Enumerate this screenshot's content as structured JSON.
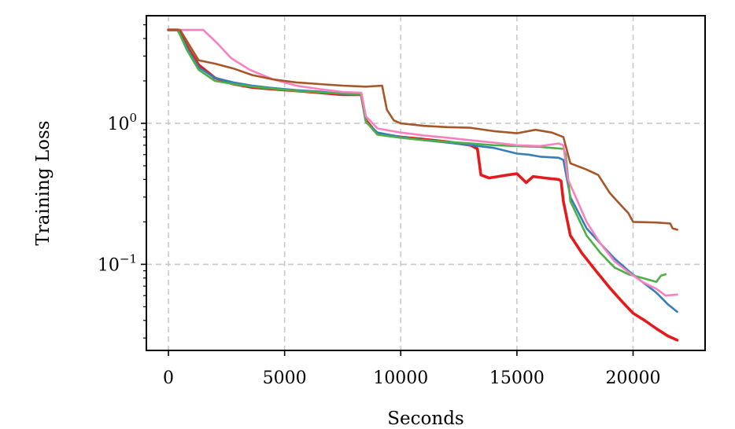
{
  "chart_data": {
    "type": "line",
    "xlabel": "Seconds",
    "ylabel": "Training Loss",
    "x_scale": "linear",
    "y_scale": "log",
    "xlim": [
      -950,
      23100
    ],
    "ylim": [
      0.0245,
      5.8
    ],
    "grid": true,
    "legend": "none",
    "x_ticks": [
      {
        "value": 0,
        "label": "0"
      },
      {
        "value": 5000,
        "label": "5000"
      },
      {
        "value": 10000,
        "label": "10000"
      },
      {
        "value": 15000,
        "label": "15000"
      },
      {
        "value": 20000,
        "label": "20000"
      }
    ],
    "y_ticks": [
      {
        "value": 1,
        "base": "10",
        "exp": "0"
      },
      {
        "value": 0.1,
        "base": "10",
        "exp": "−1"
      }
    ],
    "series": [
      {
        "color": "#e41a1c",
        "width": 3.6,
        "points": [
          [
            0,
            4.6
          ],
          [
            400,
            4.6
          ],
          [
            900,
            3.3
          ],
          [
            1300,
            2.6
          ],
          [
            2000,
            2.1
          ],
          [
            2800,
            1.9
          ],
          [
            3600,
            1.8
          ],
          [
            4500,
            1.75
          ],
          [
            5500,
            1.7
          ],
          [
            6500,
            1.65
          ],
          [
            7500,
            1.6
          ],
          [
            8300,
            1.6
          ],
          [
            8500,
            1.05
          ],
          [
            9000,
            0.84
          ],
          [
            10000,
            0.8
          ],
          [
            11000,
            0.77
          ],
          [
            12000,
            0.74
          ],
          [
            13000,
            0.7
          ],
          [
            13300,
            0.66
          ],
          [
            13450,
            0.43
          ],
          [
            13800,
            0.41
          ],
          [
            14200,
            0.42
          ],
          [
            14600,
            0.43
          ],
          [
            15000,
            0.44
          ],
          [
            15400,
            0.38
          ],
          [
            15700,
            0.42
          ],
          [
            16200,
            0.41
          ],
          [
            16800,
            0.4
          ],
          [
            16900,
            0.39
          ],
          [
            17000,
            0.28
          ],
          [
            17300,
            0.16
          ],
          [
            17800,
            0.12
          ],
          [
            18400,
            0.09
          ],
          [
            19000,
            0.068
          ],
          [
            19500,
            0.055
          ],
          [
            20000,
            0.045
          ],
          [
            20500,
            0.04
          ],
          [
            21000,
            0.035
          ],
          [
            21500,
            0.031
          ],
          [
            21900,
            0.029
          ]
        ]
      },
      {
        "color": "#377eb8",
        "width": 2.6,
        "points": [
          [
            0,
            4.6
          ],
          [
            400,
            4.6
          ],
          [
            900,
            3.2
          ],
          [
            1300,
            2.5
          ],
          [
            2000,
            2.1
          ],
          [
            2800,
            1.95
          ],
          [
            3600,
            1.85
          ],
          [
            4500,
            1.78
          ],
          [
            5500,
            1.72
          ],
          [
            6500,
            1.68
          ],
          [
            7500,
            1.62
          ],
          [
            8300,
            1.6
          ],
          [
            8500,
            1.02
          ],
          [
            9000,
            0.86
          ],
          [
            10000,
            0.8
          ],
          [
            11000,
            0.76
          ],
          [
            12000,
            0.73
          ],
          [
            13000,
            0.7
          ],
          [
            14000,
            0.67
          ],
          [
            15000,
            0.61
          ],
          [
            15500,
            0.6
          ],
          [
            16000,
            0.58
          ],
          [
            16800,
            0.57
          ],
          [
            17000,
            0.55
          ],
          [
            17300,
            0.3
          ],
          [
            18000,
            0.18
          ],
          [
            18600,
            0.14
          ],
          [
            19200,
            0.11
          ],
          [
            19800,
            0.09
          ],
          [
            20400,
            0.075
          ],
          [
            21000,
            0.063
          ],
          [
            21500,
            0.052
          ],
          [
            21900,
            0.046
          ]
        ]
      },
      {
        "color": "#4daf4a",
        "width": 2.6,
        "points": [
          [
            0,
            4.6
          ],
          [
            400,
            4.6
          ],
          [
            800,
            3.3
          ],
          [
            1300,
            2.4
          ],
          [
            2000,
            2.0
          ],
          [
            2800,
            1.9
          ],
          [
            3600,
            1.82
          ],
          [
            4500,
            1.76
          ],
          [
            5500,
            1.7
          ],
          [
            6500,
            1.66
          ],
          [
            7500,
            1.63
          ],
          [
            8300,
            1.6
          ],
          [
            8500,
            1.03
          ],
          [
            9000,
            0.83
          ],
          [
            10000,
            0.79
          ],
          [
            11000,
            0.76
          ],
          [
            12000,
            0.74
          ],
          [
            13000,
            0.72
          ],
          [
            14000,
            0.7
          ],
          [
            15000,
            0.69
          ],
          [
            16000,
            0.68
          ],
          [
            17000,
            0.66
          ],
          [
            17100,
            0.6
          ],
          [
            17300,
            0.28
          ],
          [
            18000,
            0.16
          ],
          [
            18600,
            0.12
          ],
          [
            19200,
            0.095
          ],
          [
            19800,
            0.085
          ],
          [
            20400,
            0.08
          ],
          [
            21000,
            0.075
          ],
          [
            21200,
            0.083
          ],
          [
            21400,
            0.085
          ]
        ]
      },
      {
        "color": "#f781bf",
        "width": 2.6,
        "points": [
          [
            0,
            4.6
          ],
          [
            1500,
            4.6
          ],
          [
            2100,
            3.7
          ],
          [
            2700,
            2.9
          ],
          [
            3500,
            2.4
          ],
          [
            4500,
            2.05
          ],
          [
            5500,
            1.85
          ],
          [
            6500,
            1.75
          ],
          [
            7500,
            1.67
          ],
          [
            8300,
            1.65
          ],
          [
            8500,
            1.12
          ],
          [
            9000,
            0.92
          ],
          [
            10000,
            0.86
          ],
          [
            11000,
            0.82
          ],
          [
            12000,
            0.79
          ],
          [
            13000,
            0.76
          ],
          [
            14000,
            0.73
          ],
          [
            15000,
            0.7
          ],
          [
            16000,
            0.69
          ],
          [
            16800,
            0.72
          ],
          [
            17000,
            0.7
          ],
          [
            17200,
            0.4
          ],
          [
            18000,
            0.2
          ],
          [
            18600,
            0.14
          ],
          [
            19200,
            0.105
          ],
          [
            19800,
            0.088
          ],
          [
            20400,
            0.075
          ],
          [
            21000,
            0.067
          ],
          [
            21400,
            0.06
          ],
          [
            21900,
            0.061
          ]
        ]
      },
      {
        "color": "#a65628",
        "width": 2.6,
        "points": [
          [
            0,
            4.6
          ],
          [
            500,
            4.6
          ],
          [
            1300,
            2.8
          ],
          [
            2000,
            2.65
          ],
          [
            2800,
            2.45
          ],
          [
            3600,
            2.2
          ],
          [
            4500,
            2.05
          ],
          [
            5500,
            1.95
          ],
          [
            6500,
            1.9
          ],
          [
            7500,
            1.85
          ],
          [
            8500,
            1.82
          ],
          [
            9200,
            1.85
          ],
          [
            9400,
            1.25
          ],
          [
            9700,
            1.05
          ],
          [
            10000,
            1.0
          ],
          [
            11000,
            0.96
          ],
          [
            12000,
            0.94
          ],
          [
            13000,
            0.93
          ],
          [
            14000,
            0.88
          ],
          [
            15000,
            0.85
          ],
          [
            15800,
            0.9
          ],
          [
            16500,
            0.86
          ],
          [
            17000,
            0.8
          ],
          [
            17300,
            0.52
          ],
          [
            18000,
            0.47
          ],
          [
            18500,
            0.43
          ],
          [
            19000,
            0.32
          ],
          [
            19500,
            0.26
          ],
          [
            19800,
            0.23
          ],
          [
            20000,
            0.2
          ],
          [
            21000,
            0.198
          ],
          [
            21600,
            0.195
          ],
          [
            21700,
            0.18
          ],
          [
            21900,
            0.176
          ]
        ]
      }
    ]
  }
}
